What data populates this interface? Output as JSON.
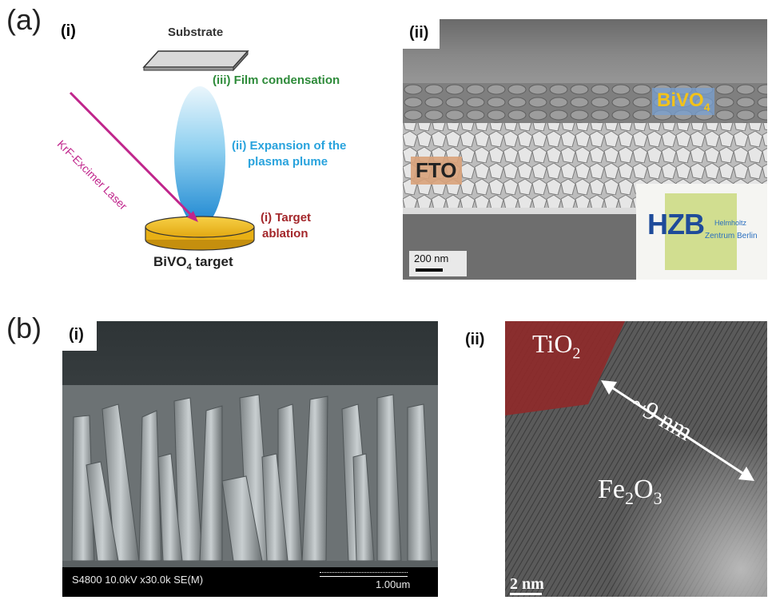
{
  "panel_a": {
    "letter": "(a)",
    "sub_i": {
      "label": "(i)",
      "substrate": "Substrate",
      "step_iii": "(iii) Film condensation",
      "step_ii_line1": "(ii) Expansion of the",
      "step_ii_line2": "plasma plume",
      "step_i_line1": "(i) Target",
      "step_i_line2": "ablation",
      "laser": "KrF-Excimer Laser",
      "target": "BiVO",
      "target_sub": "4",
      "target_suffix": " target"
    },
    "sub_ii": {
      "label": "(ii)",
      "bivo4": "BiVO",
      "bivo4_sub": "4",
      "fto": "FTO",
      "logo_text": "HZB",
      "logo_small_1": "Helmholtz",
      "logo_small_2": "Zentrum Berlin",
      "scale": "200 nm"
    }
  },
  "panel_b": {
    "letter": "(b)",
    "sub_i": {
      "label": "(i)",
      "info": "S4800 10.0kV x30.0k SE(M)",
      "scale": "1.00um"
    },
    "sub_ii": {
      "label": "(ii)",
      "tio2": "TiO",
      "tio2_sub": "2",
      "size": "~9 nm",
      "fe2o3_a": "Fe",
      "fe2o3_sub1": "2",
      "fe2o3_b": "O",
      "fe2o3_sub2": "3",
      "scale": "2 nm"
    }
  },
  "colors": {
    "laser": "#c0268c",
    "step_iii": "#2e8b3a",
    "step_ii": "#29a3dd",
    "step_i": "#a3262a",
    "target_gold": "#f2bd1e",
    "bivo4_label": "#f2c21a",
    "fto_box": "#d9a27a",
    "tio2_region": "#9e2b2b"
  }
}
